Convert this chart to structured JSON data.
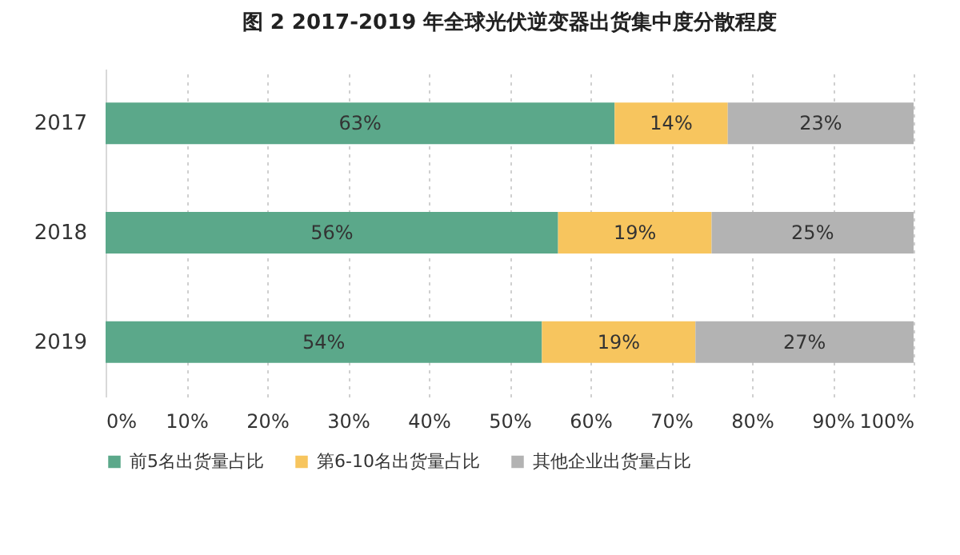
{
  "chart_data": {
    "type": "bar",
    "orientation": "horizontal",
    "stacked": true,
    "title": "图 2 2017-2019 年全球光伏逆变器出货集中度分散程度",
    "categories": [
      "2017",
      "2018",
      "2019"
    ],
    "series": [
      {
        "name": "前5名出货量占比",
        "color": "#5ba88a",
        "values": [
          63,
          56,
          54
        ],
        "value_labels": [
          "63%",
          "56%",
          "54%"
        ]
      },
      {
        "name": "第6-10名出货量占比",
        "color": "#f7c55e",
        "values": [
          14,
          19,
          19
        ],
        "value_labels": [
          "14%",
          "19%",
          "19%"
        ]
      },
      {
        "name": "其他企业出货量占比",
        "color": "#b3b3b3",
        "values": [
          23,
          25,
          27
        ],
        "value_labels": [
          "23%",
          "25%",
          "27%"
        ]
      }
    ],
    "xlim": [
      0,
      100
    ],
    "xticks": [
      {
        "value": 0,
        "label": "0%"
      },
      {
        "value": 10,
        "label": "10%"
      },
      {
        "value": 20,
        "label": "20%"
      },
      {
        "value": 30,
        "label": "30%"
      },
      {
        "value": 40,
        "label": "40%"
      },
      {
        "value": 50,
        "label": "50%"
      },
      {
        "value": 60,
        "label": "60%"
      },
      {
        "value": 70,
        "label": "70%"
      },
      {
        "value": 80,
        "label": "80%"
      },
      {
        "value": 90,
        "label": "90%"
      },
      {
        "value": 100,
        "label": "100%"
      }
    ],
    "grid": "x",
    "legend": "bottom"
  }
}
